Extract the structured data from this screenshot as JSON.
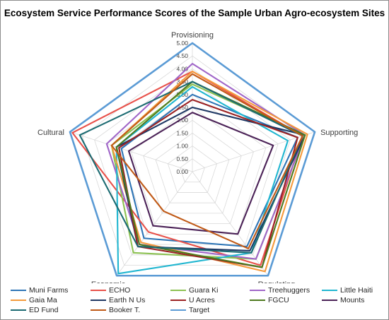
{
  "chart_data": {
    "type": "radar",
    "title": "Ecosystem Service Performance Scores of the Sample Urban Agro-ecosystem Sites",
    "axes": [
      "Provisioning",
      "Supporting",
      "Regulating",
      "Economic",
      "Cultural"
    ],
    "rlim": [
      0,
      5
    ],
    "ticks": [
      "0.00",
      "0.50",
      "1.00",
      "1.50",
      "2.00",
      "2.50",
      "3.00",
      "3.50",
      "4.00",
      "4.50",
      "5.00"
    ],
    "grid": true,
    "legend_position": "bottom",
    "series": [
      {
        "name": "Muni Farms",
        "color": "#2e75b6",
        "values": [
          3.0,
          4.3,
          3.6,
          3.2,
          2.9
        ]
      },
      {
        "name": "ECHO",
        "color": "#e8514a",
        "values": [
          3.9,
          4.5,
          4.5,
          2.9,
          4.9
        ]
      },
      {
        "name": "Guara Ki",
        "color": "#8cc152",
        "values": [
          3.4,
          4.6,
          4.2,
          3.9,
          3.3
        ]
      },
      {
        "name": "Treehuggers",
        "color": "#a066c8",
        "values": [
          4.2,
          4.6,
          4.2,
          3.5,
          3.5
        ]
      },
      {
        "name": "Little Haiti",
        "color": "#21b6d0",
        "values": [
          3.3,
          3.9,
          3.9,
          4.9,
          3.1
        ]
      },
      {
        "name": "Gaia Ma",
        "color": "#f59a3c",
        "values": [
          3.9,
          4.7,
          4.8,
          3.4,
          3.3
        ]
      },
      {
        "name": "Earth N Us",
        "color": "#1f3864",
        "values": [
          2.5,
          4.6,
          3.8,
          3.6,
          3.1
        ]
      },
      {
        "name": "U Acres",
        "color": "#9b2223",
        "values": [
          2.8,
          4.3,
          4.6,
          3.6,
          3.0
        ]
      },
      {
        "name": "FGCU",
        "color": "#4e7a1f",
        "values": [
          3.5,
          4.6,
          4.6,
          3.5,
          3.1
        ]
      },
      {
        "name": "Mounts",
        "color": "#4b2257",
        "values": [
          2.3,
          3.3,
          3.0,
          2.6,
          2.6
        ]
      },
      {
        "name": "ED Fund",
        "color": "#1c6b72",
        "values": [
          3.5,
          4.5,
          3.9,
          3.6,
          4.6
        ]
      },
      {
        "name": "Booker T.",
        "color": "#c05a17",
        "values": [
          3.8,
          4.5,
          3.7,
          1.9,
          3.3
        ]
      },
      {
        "name": "Target",
        "color": "#5b9bd5",
        "values": [
          5.0,
          5.0,
          5.0,
          5.0,
          5.0
        ]
      }
    ]
  }
}
